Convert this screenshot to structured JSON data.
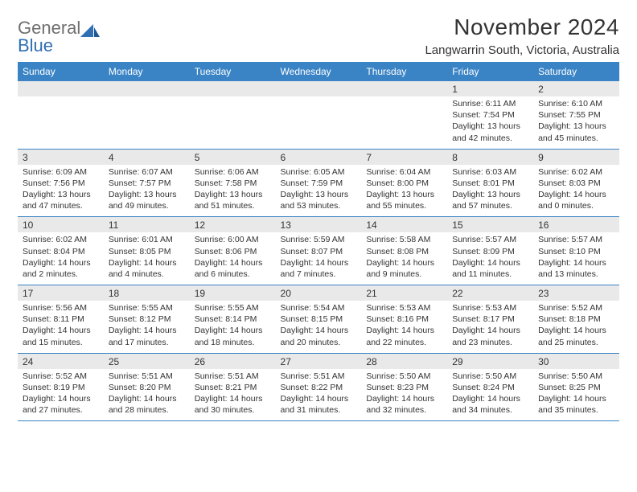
{
  "brand": {
    "gray": "General",
    "blue": "Blue"
  },
  "title": "November 2024",
  "location": "Langwarrin South, Victoria, Australia",
  "colors": {
    "header_bg": "#3a84c5",
    "header_fg": "#ffffff",
    "daynum_bg": "#e9e9e9",
    "rule": "#3a84c5",
    "text": "#333333",
    "logo_gray": "#6f6f6f",
    "logo_blue": "#2f6fb3",
    "page_bg": "#ffffff"
  },
  "fonts": {
    "title_pt": 28,
    "location_pt": 15,
    "header_pt": 12,
    "daynum_pt": 12,
    "cell_pt": 10.5
  },
  "weekdays": [
    "Sunday",
    "Monday",
    "Tuesday",
    "Wednesday",
    "Thursday",
    "Friday",
    "Saturday"
  ],
  "weeks": [
    [
      null,
      null,
      null,
      null,
      null,
      {
        "n": "1",
        "sr": "Sunrise: 6:11 AM",
        "ss": "Sunset: 7:54 PM",
        "d1": "Daylight: 13 hours",
        "d2": "and 42 minutes."
      },
      {
        "n": "2",
        "sr": "Sunrise: 6:10 AM",
        "ss": "Sunset: 7:55 PM",
        "d1": "Daylight: 13 hours",
        "d2": "and 45 minutes."
      }
    ],
    [
      {
        "n": "3",
        "sr": "Sunrise: 6:09 AM",
        "ss": "Sunset: 7:56 PM",
        "d1": "Daylight: 13 hours",
        "d2": "and 47 minutes."
      },
      {
        "n": "4",
        "sr": "Sunrise: 6:07 AM",
        "ss": "Sunset: 7:57 PM",
        "d1": "Daylight: 13 hours",
        "d2": "and 49 minutes."
      },
      {
        "n": "5",
        "sr": "Sunrise: 6:06 AM",
        "ss": "Sunset: 7:58 PM",
        "d1": "Daylight: 13 hours",
        "d2": "and 51 minutes."
      },
      {
        "n": "6",
        "sr": "Sunrise: 6:05 AM",
        "ss": "Sunset: 7:59 PM",
        "d1": "Daylight: 13 hours",
        "d2": "and 53 minutes."
      },
      {
        "n": "7",
        "sr": "Sunrise: 6:04 AM",
        "ss": "Sunset: 8:00 PM",
        "d1": "Daylight: 13 hours",
        "d2": "and 55 minutes."
      },
      {
        "n": "8",
        "sr": "Sunrise: 6:03 AM",
        "ss": "Sunset: 8:01 PM",
        "d1": "Daylight: 13 hours",
        "d2": "and 57 minutes."
      },
      {
        "n": "9",
        "sr": "Sunrise: 6:02 AM",
        "ss": "Sunset: 8:03 PM",
        "d1": "Daylight: 14 hours",
        "d2": "and 0 minutes."
      }
    ],
    [
      {
        "n": "10",
        "sr": "Sunrise: 6:02 AM",
        "ss": "Sunset: 8:04 PM",
        "d1": "Daylight: 14 hours",
        "d2": "and 2 minutes."
      },
      {
        "n": "11",
        "sr": "Sunrise: 6:01 AM",
        "ss": "Sunset: 8:05 PM",
        "d1": "Daylight: 14 hours",
        "d2": "and 4 minutes."
      },
      {
        "n": "12",
        "sr": "Sunrise: 6:00 AM",
        "ss": "Sunset: 8:06 PM",
        "d1": "Daylight: 14 hours",
        "d2": "and 6 minutes."
      },
      {
        "n": "13",
        "sr": "Sunrise: 5:59 AM",
        "ss": "Sunset: 8:07 PM",
        "d1": "Daylight: 14 hours",
        "d2": "and 7 minutes."
      },
      {
        "n": "14",
        "sr": "Sunrise: 5:58 AM",
        "ss": "Sunset: 8:08 PM",
        "d1": "Daylight: 14 hours",
        "d2": "and 9 minutes."
      },
      {
        "n": "15",
        "sr": "Sunrise: 5:57 AM",
        "ss": "Sunset: 8:09 PM",
        "d1": "Daylight: 14 hours",
        "d2": "and 11 minutes."
      },
      {
        "n": "16",
        "sr": "Sunrise: 5:57 AM",
        "ss": "Sunset: 8:10 PM",
        "d1": "Daylight: 14 hours",
        "d2": "and 13 minutes."
      }
    ],
    [
      {
        "n": "17",
        "sr": "Sunrise: 5:56 AM",
        "ss": "Sunset: 8:11 PM",
        "d1": "Daylight: 14 hours",
        "d2": "and 15 minutes."
      },
      {
        "n": "18",
        "sr": "Sunrise: 5:55 AM",
        "ss": "Sunset: 8:12 PM",
        "d1": "Daylight: 14 hours",
        "d2": "and 17 minutes."
      },
      {
        "n": "19",
        "sr": "Sunrise: 5:55 AM",
        "ss": "Sunset: 8:14 PM",
        "d1": "Daylight: 14 hours",
        "d2": "and 18 minutes."
      },
      {
        "n": "20",
        "sr": "Sunrise: 5:54 AM",
        "ss": "Sunset: 8:15 PM",
        "d1": "Daylight: 14 hours",
        "d2": "and 20 minutes."
      },
      {
        "n": "21",
        "sr": "Sunrise: 5:53 AM",
        "ss": "Sunset: 8:16 PM",
        "d1": "Daylight: 14 hours",
        "d2": "and 22 minutes."
      },
      {
        "n": "22",
        "sr": "Sunrise: 5:53 AM",
        "ss": "Sunset: 8:17 PM",
        "d1": "Daylight: 14 hours",
        "d2": "and 23 minutes."
      },
      {
        "n": "23",
        "sr": "Sunrise: 5:52 AM",
        "ss": "Sunset: 8:18 PM",
        "d1": "Daylight: 14 hours",
        "d2": "and 25 minutes."
      }
    ],
    [
      {
        "n": "24",
        "sr": "Sunrise: 5:52 AM",
        "ss": "Sunset: 8:19 PM",
        "d1": "Daylight: 14 hours",
        "d2": "and 27 minutes."
      },
      {
        "n": "25",
        "sr": "Sunrise: 5:51 AM",
        "ss": "Sunset: 8:20 PM",
        "d1": "Daylight: 14 hours",
        "d2": "and 28 minutes."
      },
      {
        "n": "26",
        "sr": "Sunrise: 5:51 AM",
        "ss": "Sunset: 8:21 PM",
        "d1": "Daylight: 14 hours",
        "d2": "and 30 minutes."
      },
      {
        "n": "27",
        "sr": "Sunrise: 5:51 AM",
        "ss": "Sunset: 8:22 PM",
        "d1": "Daylight: 14 hours",
        "d2": "and 31 minutes."
      },
      {
        "n": "28",
        "sr": "Sunrise: 5:50 AM",
        "ss": "Sunset: 8:23 PM",
        "d1": "Daylight: 14 hours",
        "d2": "and 32 minutes."
      },
      {
        "n": "29",
        "sr": "Sunrise: 5:50 AM",
        "ss": "Sunset: 8:24 PM",
        "d1": "Daylight: 14 hours",
        "d2": "and 34 minutes."
      },
      {
        "n": "30",
        "sr": "Sunrise: 5:50 AM",
        "ss": "Sunset: 8:25 PM",
        "d1": "Daylight: 14 hours",
        "d2": "and 35 minutes."
      }
    ]
  ]
}
